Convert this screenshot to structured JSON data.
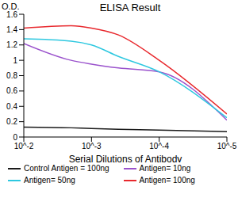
{
  "chart_data": {
    "type": "line",
    "title": "ELISA Result",
    "x_label": "Serial Dilutions of Antibody",
    "y_label": "O.D.",
    "log": "x",
    "grid": false,
    "legend": "bottom",
    "x": [
      0.01,
      0.002,
      0.001,
      0.0004,
      0.0001,
      1e-05
    ],
    "xlim": [
      0.01,
      1e-05
    ],
    "xticks": [
      {
        "value": 0.01,
        "label": "10^-2"
      },
      {
        "value": 0.001,
        "label": "10^-3"
      },
      {
        "value": 0.0001,
        "label": "10^-4"
      },
      {
        "value": 1e-05,
        "label": "10^-5"
      }
    ],
    "ylim": [
      0,
      1.6
    ],
    "yticks": [
      0,
      0.2,
      0.4,
      0.6,
      0.8,
      1,
      1.2,
      1.4,
      1.6
    ],
    "series": [
      {
        "name": "Control Antigen = 100ng",
        "color": "#1a1a1a",
        "values": [
          0.13,
          0.12,
          0.11,
          0.1,
          0.09,
          0.07
        ]
      },
      {
        "name": "Antigen= 10ng",
        "color": "#9a52cc",
        "values": [
          1.22,
          1.0,
          0.95,
          0.9,
          0.85,
          0.22
        ]
      },
      {
        "name": "Antigen= 50ng",
        "color": "#2ec8e0",
        "values": [
          1.28,
          1.25,
          1.2,
          1.05,
          0.85,
          0.25
        ]
      },
      {
        "name": "Antigen= 100ng",
        "color": "#e8282d",
        "values": [
          1.42,
          1.45,
          1.42,
          1.33,
          1.0,
          0.3
        ]
      }
    ]
  }
}
